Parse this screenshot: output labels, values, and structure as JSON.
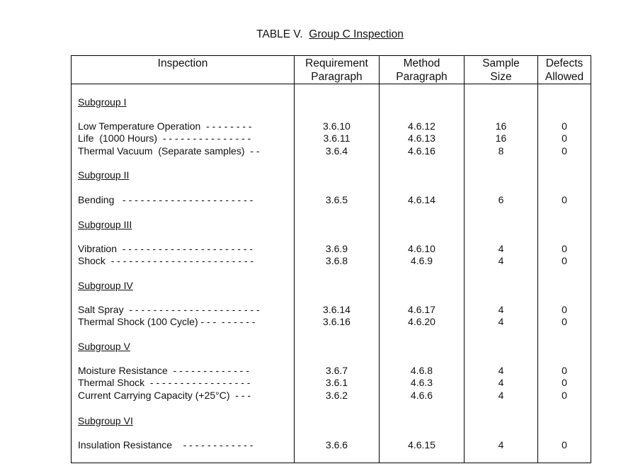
{
  "title": {
    "prefix": "TABLE V.",
    "main": "Group C Inspection"
  },
  "headers": {
    "inspection": "Inspection",
    "requirement": [
      "Requirement",
      "Paragraph"
    ],
    "method": [
      "Method",
      "Paragraph"
    ],
    "sample": [
      "Sample",
      "Size"
    ],
    "defects": [
      "Defects",
      "Allowed"
    ]
  },
  "subgroups": [
    {
      "name": "Subgroup I",
      "rows": [
        {
          "inspection": "Low Temperature Operation  - - - - - - - -",
          "req": "3.6.10",
          "method": "4.6.12",
          "sample": "16",
          "defects": "0"
        },
        {
          "inspection": "Life  (1000 Hours)  - - - - - - - - - - - - - - -",
          "req": "3.6.11",
          "method": "4.6.13",
          "sample": "16",
          "defects": "0"
        },
        {
          "inspection": "Thermal Vacuum  (Separate samples)  - -",
          "req": "3.6.4",
          "method": "4.6.16",
          "sample": "8",
          "defects": "0"
        }
      ]
    },
    {
      "name": "Subgroup II",
      "rows": [
        {
          "inspection": "Bending   - - - - - - - - - - - - - - - - - - - - - -",
          "req": "3.6.5",
          "method": "4.6.14",
          "sample": "6",
          "defects": "0"
        }
      ]
    },
    {
      "name": "Subgroup III",
      "rows": [
        {
          "inspection": "Vibration  - - - - - - - - - - - - - - - - - - - - - -",
          "req": "3.6.9",
          "method": "4.6.10",
          "sample": "4",
          "defects": "0"
        },
        {
          "inspection": "Shock  - - - - - - - - - - - - - - - - - - - - - - - -",
          "req": "3.6.8",
          "method": "4.6.9",
          "sample": "4",
          "defects": "0"
        }
      ]
    },
    {
      "name": "Subgroup IV",
      "rows": [
        {
          "inspection": "Salt Spray  - - - - - - - - - - - - - - - - - - - - - -",
          "req": "3.6.14",
          "method": "4.6.17",
          "sample": "4",
          "defects": "0"
        },
        {
          "inspection": "Thermal Shock (100 Cycle) - - -  - - - - - -",
          "req": "3.6.16",
          "method": "4.6.20",
          "sample": "4",
          "defects": "0"
        }
      ]
    },
    {
      "name": "Subgroup V",
      "rows": [
        {
          "inspection": "Moisture Resistance  - - - - - - - - - - - - -",
          "req": "3.6.7",
          "method": "4.6.8",
          "sample": "4",
          "defects": "0"
        },
        {
          "inspection": "Thermal Shock  - - - - - - - - - - - - - - - - -",
          "req": "3.6.1",
          "method": "4.6.3",
          "sample": "4",
          "defects": "0"
        },
        {
          "inspection": "Current Carrying Capacity (+25°C)  - - -",
          "req": "3.6.2",
          "method": "4.6.6",
          "sample": "4",
          "defects": "0"
        }
      ]
    },
    {
      "name": "Subgroup VI",
      "rows": [
        {
          "inspection": "Insulation Resistance    - - - - - - - - - - - -",
          "req": "3.6.6",
          "method": "4.6.15",
          "sample": "4",
          "defects": "0"
        }
      ]
    }
  ]
}
